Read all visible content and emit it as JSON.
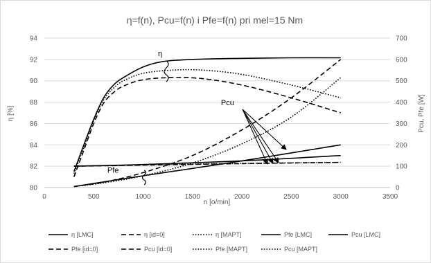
{
  "chart_data": {
    "type": "line",
    "title": "η=f(n), Pcu=f(n) i Pfe=f(n) pri mel=15 Nm",
    "xlabel": "n [o/min]",
    "ylabel": "η [%]",
    "y2label": "Pcu, Pfe [W]",
    "xlim": [
      0,
      3500
    ],
    "ylim": [
      80,
      94
    ],
    "y2lim": [
      0,
      700
    ],
    "xticks": [
      "0",
      "500",
      "1000",
      "1500",
      "2000",
      "2500",
      "3000",
      "3500"
    ],
    "yticks": [
      "80",
      "82",
      "84",
      "86",
      "88",
      "90",
      "92",
      "94"
    ],
    "y2ticks": [
      "0",
      "100",
      "200",
      "300",
      "400",
      "500",
      "600",
      "700"
    ],
    "grid": "horizontal",
    "legend_position": "bottom",
    "series": [
      {
        "name": "η [LMC]",
        "axis": "left",
        "style": "solid",
        "x": [
          300,
          400,
          500,
          600,
          700,
          800,
          1000,
          1200,
          1500,
          2000,
          2500,
          3000
        ],
        "values": [
          81.5,
          84.0,
          86.4,
          88.4,
          89.6,
          90.3,
          91.3,
          91.8,
          92.0,
          92.1,
          92.15,
          92.15
        ]
      },
      {
        "name": "η [id=0]",
        "axis": "left",
        "style": "dashed",
        "x": [
          300,
          400,
          500,
          600,
          700,
          800,
          1000,
          1300,
          1600,
          2000,
          2500,
          3000
        ],
        "values": [
          81.0,
          83.5,
          86.0,
          87.9,
          88.9,
          89.5,
          90.1,
          90.3,
          90.2,
          89.6,
          88.4,
          87.0
        ]
      },
      {
        "name": "η [MAPT]",
        "axis": "left",
        "style": "dotted",
        "x": [
          300,
          400,
          500,
          600,
          700,
          800,
          1000,
          1300,
          1600,
          2000,
          2500,
          3000
        ],
        "values": [
          81.3,
          83.8,
          86.3,
          88.2,
          89.3,
          90.0,
          90.7,
          91.0,
          91.0,
          90.6,
          89.6,
          88.4
        ]
      },
      {
        "name": "Pfe [LMC]",
        "axis": "right",
        "style": "solid",
        "x": [
          300,
          1000,
          2000,
          3000
        ],
        "values": [
          100,
          108,
          125,
          150
        ]
      },
      {
        "name": "Pcu [LMC]",
        "axis": "right",
        "style": "solid",
        "x": [
          300,
          1000,
          2000,
          3000
        ],
        "values": [
          5,
          55,
          125,
          200
        ]
      },
      {
        "name": "Pfe [id=0]",
        "axis": "right",
        "style": "dashed",
        "x": [
          300,
          1000,
          2000,
          3000
        ],
        "values": [
          100,
          105,
          112,
          118
        ]
      },
      {
        "name": "Pcu [id=0]",
        "axis": "right",
        "style": "dashed",
        "x": [
          300,
          600,
          1000,
          1500,
          2000,
          2500,
          3000
        ],
        "values": [
          5,
          25,
          70,
          150,
          270,
          420,
          600
        ]
      },
      {
        "name": "Pfe [MAPT]",
        "axis": "right",
        "style": "dotted",
        "x": [
          300,
          1000,
          2000,
          3000
        ],
        "values": [
          100,
          106,
          113,
          118
        ]
      },
      {
        "name": "Pcu [MAPT]",
        "axis": "right",
        "style": "dotted",
        "x": [
          300,
          600,
          1000,
          1500,
          2000,
          2500,
          3000
        ],
        "values": [
          5,
          22,
          55,
          115,
          205,
          330,
          515
        ]
      }
    ],
    "annotations": [
      {
        "text": "η",
        "x": 1150,
        "y": 92.3
      },
      {
        "text": "Pcu",
        "x": 1900,
        "y": 87.7
      },
      {
        "text": "Pfe",
        "x": 820,
        "y": 81.4
      }
    ]
  }
}
